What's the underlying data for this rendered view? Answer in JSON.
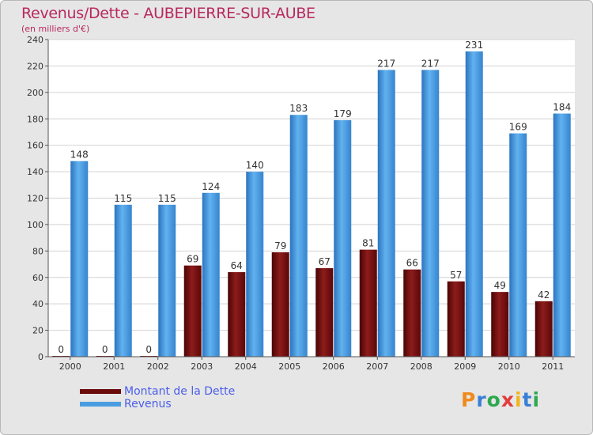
{
  "header": {
    "title": "Revenus/Dette - AUBEPIERRE-SUR-AUBE",
    "subtitle": "(en milliers d'€)"
  },
  "chart_data": {
    "type": "bar",
    "categories": [
      "2000",
      "2001",
      "2002",
      "2003",
      "2004",
      "2005",
      "2006",
      "2007",
      "2008",
      "2009",
      "2010",
      "2011"
    ],
    "series": [
      {
        "name": "Montant de la Dette",
        "values": [
          0,
          0,
          0,
          69,
          64,
          79,
          67,
          81,
          66,
          57,
          49,
          42
        ],
        "color": "#7a0c0c"
      },
      {
        "name": "Revenus",
        "values": [
          148,
          115,
          115,
          124,
          140,
          183,
          179,
          217,
          217,
          231,
          169,
          184
        ],
        "color": "#3d8fd8"
      }
    ],
    "ylim": [
      0,
      240
    ],
    "yticks": [
      0,
      20,
      40,
      60,
      80,
      100,
      120,
      140,
      160,
      180,
      200,
      220,
      240
    ],
    "grid": true,
    "legend_position": "bottom-left"
  },
  "legend": {
    "items": [
      {
        "label": "Montant de la Dette",
        "color": "#6b0a0a"
      },
      {
        "label": "Revenus",
        "color": "#4a9de0"
      }
    ]
  },
  "logo": {
    "text": "Proxiti"
  }
}
